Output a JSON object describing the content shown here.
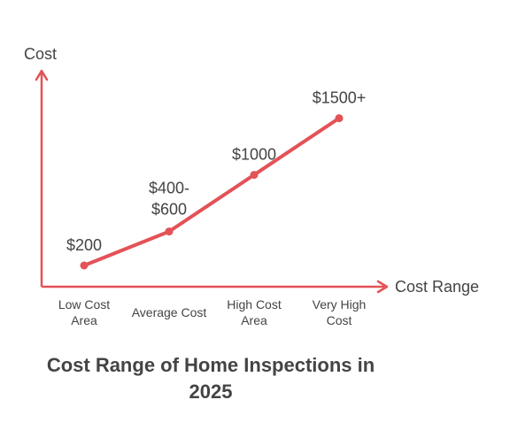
{
  "chart_data": {
    "type": "line",
    "title": "Cost Range of Home Inspections in 2025",
    "xlabel": "Cost Range",
    "ylabel": "Cost",
    "categories": [
      "Low Cost Area",
      "Average Cost",
      "High Cost Area",
      "Very High Cost"
    ],
    "values": [
      200,
      500,
      1000,
      1500
    ],
    "data_labels": [
      "$200",
      "$400-$600",
      "$1000",
      "$1500+"
    ],
    "ylim": [
      0,
      1800
    ],
    "grid": false,
    "legend": "none",
    "colors": {
      "line": "#e35257",
      "axis": "#e35257",
      "text": "#444444"
    }
  }
}
